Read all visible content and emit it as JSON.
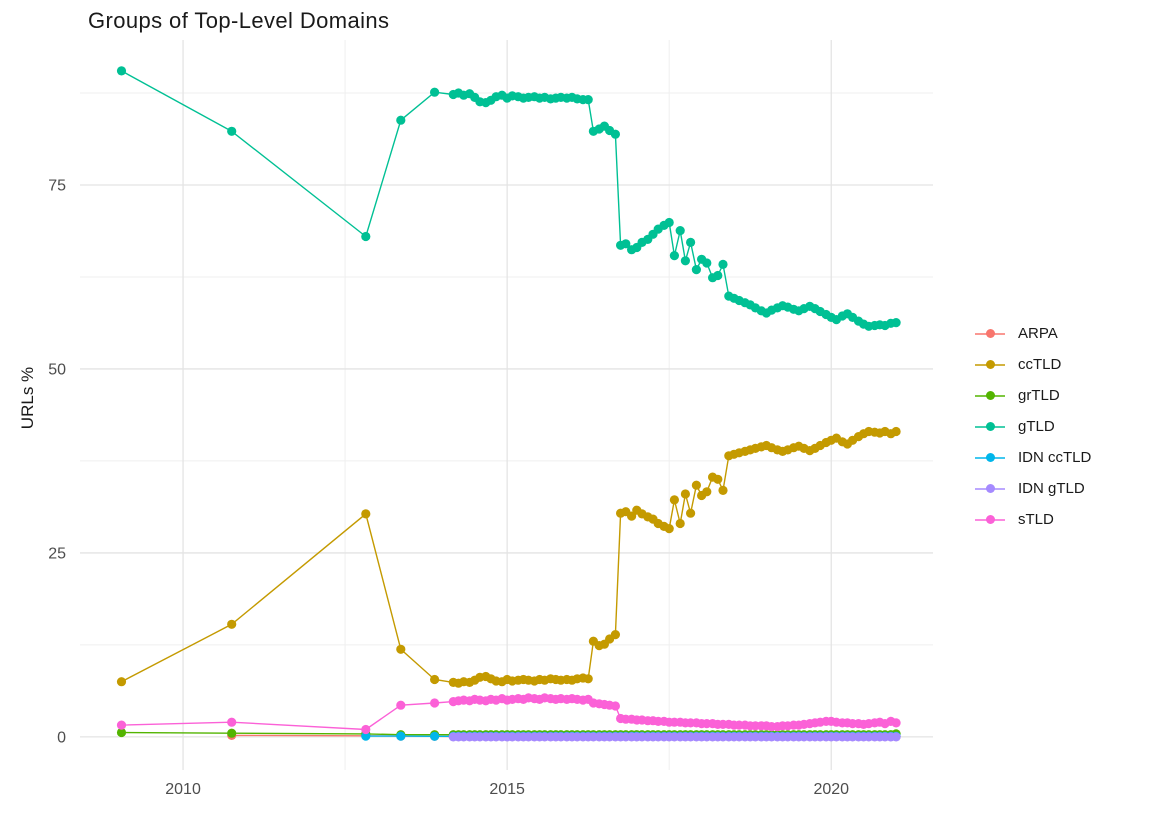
{
  "chart_data": {
    "type": "line",
    "title": "Groups of Top-Level Domains",
    "xlabel": "",
    "ylabel": "URLs %",
    "grid": true,
    "legend_position": "right",
    "xlim": [
      2008.41,
      2021.57
    ],
    "ylim": [
      -4.5,
      94.7
    ],
    "x_ticks": [
      {
        "v": 2010,
        "label": "2010"
      },
      {
        "v": 2015,
        "label": "2015"
      },
      {
        "v": 2020,
        "label": "2020"
      }
    ],
    "y_ticks": [
      {
        "v": 0,
        "label": "0"
      },
      {
        "v": 25,
        "label": "25"
      },
      {
        "v": 50,
        "label": "50"
      },
      {
        "v": 75,
        "label": "75"
      }
    ],
    "x_minor": [
      2012.5,
      2017.5
    ],
    "y_minor": [
      12.5,
      37.5,
      62.5,
      87.5
    ],
    "x": [
      2009.05,
      2010.75,
      2012.82,
      2013.36,
      2013.88,
      2014.17,
      2014.25,
      2014.33,
      2014.42,
      2014.5,
      2014.58,
      2014.67,
      2014.75,
      2014.83,
      2014.92,
      2015.0,
      2015.08,
      2015.17,
      2015.25,
      2015.33,
      2015.42,
      2015.5,
      2015.58,
      2015.67,
      2015.75,
      2015.83,
      2015.92,
      2016.0,
      2016.08,
      2016.17,
      2016.25,
      2016.33,
      2016.42,
      2016.5,
      2016.58,
      2016.67,
      2016.75,
      2016.83,
      2016.92,
      2017.0,
      2017.08,
      2017.17,
      2017.25,
      2017.33,
      2017.42,
      2017.5,
      2017.58,
      2017.67,
      2017.75,
      2017.83,
      2017.92,
      2018.0,
      2018.08,
      2018.17,
      2018.25,
      2018.33,
      2018.42,
      2018.5,
      2018.58,
      2018.67,
      2018.75,
      2018.83,
      2018.92,
      2019.0,
      2019.08,
      2019.17,
      2019.25,
      2019.33,
      2019.42,
      2019.5,
      2019.58,
      2019.67,
      2019.75,
      2019.83,
      2019.92,
      2020.0,
      2020.08,
      2020.17,
      2020.25,
      2020.33,
      2020.42,
      2020.5,
      2020.58,
      2020.67,
      2020.75,
      2020.83,
      2020.92,
      2021.0
    ],
    "series": [
      {
        "name": "ARPA",
        "color": "#F8766D",
        "values": [
          null,
          0.2,
          0.15,
          0.1,
          0.08,
          0.05,
          0.05,
          0.05,
          0.05,
          0.05,
          0.05,
          0.05,
          0.05,
          0.05,
          0.05,
          0.05,
          0.05,
          0.05,
          0.05,
          0.05,
          0.05,
          0.05,
          0.05,
          0.05,
          0.05,
          0.05,
          0.05,
          0.05,
          0.05,
          0.05,
          0.05,
          0.05,
          0.05,
          0.05,
          0.05,
          0.05,
          0.05,
          0.05,
          0.05,
          0.05,
          0.05,
          0.05,
          0.05,
          0.05,
          0.05,
          0.05,
          0.05,
          0.05,
          0.05,
          0.05,
          0.05,
          0.05,
          0.05,
          0.05,
          0.05,
          0.05,
          0.05,
          0.05,
          0.05,
          0.05,
          0.05,
          0.05,
          0.05,
          0.05,
          0.05,
          0.05,
          0.05,
          0.05,
          0.05,
          0.05,
          0.05,
          0.05,
          0.05,
          0.05,
          0.05,
          0.05,
          0.05,
          0.05,
          0.05,
          0.05,
          0.05,
          0.05,
          0.05,
          0.05,
          0.05,
          0.05,
          0.05,
          0.05
        ]
      },
      {
        "name": "ccTLD",
        "color": "#C49A00",
        "values": [
          7.5,
          15.3,
          30.3,
          11.9,
          7.8,
          7.4,
          7.3,
          7.5,
          7.4,
          7.7,
          8.1,
          8.2,
          7.9,
          7.6,
          7.5,
          7.8,
          7.6,
          7.7,
          7.8,
          7.7,
          7.6,
          7.8,
          7.7,
          7.9,
          7.8,
          7.7,
          7.8,
          7.7,
          7.9,
          8.0,
          7.9,
          13.0,
          12.4,
          12.6,
          13.3,
          13.9,
          30.4,
          30.6,
          30.0,
          30.8,
          30.3,
          29.9,
          29.6,
          29.0,
          28.6,
          28.3,
          32.2,
          29.0,
          33.0,
          30.4,
          34.2,
          32.8,
          33.3,
          35.3,
          35.0,
          33.5,
          38.2,
          38.4,
          38.6,
          38.8,
          39.0,
          39.2,
          39.4,
          39.6,
          39.3,
          39.0,
          38.8,
          39.0,
          39.3,
          39.5,
          39.2,
          38.9,
          39.2,
          39.6,
          40.0,
          40.3,
          40.6,
          40.1,
          39.8,
          40.3,
          40.8,
          41.2,
          41.5,
          41.4,
          41.3,
          41.5,
          41.2,
          41.5
        ]
      },
      {
        "name": "grTLD",
        "color": "#53B400",
        "values": [
          0.6,
          0.5,
          0.4,
          0.3,
          0.3,
          0.3,
          0.3,
          0.3,
          0.3,
          0.3,
          0.3,
          0.3,
          0.3,
          0.3,
          0.3,
          0.3,
          0.3,
          0.3,
          0.3,
          0.3,
          0.3,
          0.3,
          0.3,
          0.3,
          0.3,
          0.3,
          0.3,
          0.3,
          0.3,
          0.3,
          0.3,
          0.3,
          0.3,
          0.3,
          0.3,
          0.3,
          0.3,
          0.3,
          0.3,
          0.3,
          0.3,
          0.3,
          0.3,
          0.3,
          0.3,
          0.3,
          0.3,
          0.3,
          0.3,
          0.3,
          0.3,
          0.3,
          0.3,
          0.3,
          0.3,
          0.3,
          0.3,
          0.3,
          0.3,
          0.3,
          0.3,
          0.3,
          0.3,
          0.3,
          0.3,
          0.3,
          0.3,
          0.3,
          0.3,
          0.3,
          0.3,
          0.3,
          0.3,
          0.3,
          0.3,
          0.3,
          0.3,
          0.3,
          0.3,
          0.3,
          0.3,
          0.3,
          0.3,
          0.3,
          0.3,
          0.3,
          0.3,
          0.4
        ]
      },
      {
        "name": "gTLD",
        "color": "#00C094",
        "values": [
          90.5,
          82.3,
          68.0,
          83.8,
          87.6,
          87.3,
          87.5,
          87.2,
          87.4,
          86.9,
          86.3,
          86.2,
          86.5,
          87.0,
          87.2,
          86.8,
          87.1,
          87.0,
          86.8,
          86.9,
          87.0,
          86.8,
          86.9,
          86.7,
          86.8,
          86.9,
          86.8,
          86.9,
          86.7,
          86.6,
          86.6,
          82.3,
          82.6,
          83.0,
          82.4,
          81.9,
          66.8,
          67.0,
          66.2,
          66.5,
          67.2,
          67.6,
          68.3,
          69.0,
          69.5,
          69.9,
          65.4,
          68.8,
          64.7,
          67.2,
          63.5,
          64.9,
          64.4,
          62.4,
          62.7,
          64.2,
          59.9,
          59.6,
          59.3,
          59.0,
          58.7,
          58.3,
          57.9,
          57.6,
          58.0,
          58.3,
          58.6,
          58.4,
          58.1,
          57.9,
          58.2,
          58.5,
          58.2,
          57.8,
          57.4,
          57.0,
          56.7,
          57.2,
          57.5,
          57.0,
          56.5,
          56.1,
          55.8,
          55.9,
          56.0,
          55.9,
          56.2,
          56.3
        ]
      },
      {
        "name": "IDN ccTLD",
        "color": "#00B6EB",
        "values": [
          null,
          null,
          0.1,
          0.1,
          0.08,
          0.08,
          0.08,
          0.08,
          0.08,
          0.08,
          0.08,
          0.08,
          0.08,
          0.08,
          0.08,
          0.08,
          0.08,
          0.08,
          0.08,
          0.08,
          0.08,
          0.08,
          0.08,
          0.08,
          0.08,
          0.08,
          0.08,
          0.08,
          0.08,
          0.08,
          0.08,
          0.08,
          0.08,
          0.08,
          0.08,
          0.08,
          0.08,
          0.08,
          0.08,
          0.08,
          0.08,
          0.08,
          0.08,
          0.08,
          0.08,
          0.08,
          0.08,
          0.08,
          0.08,
          0.08,
          0.08,
          0.08,
          0.08,
          0.08,
          0.08,
          0.08,
          0.08,
          0.08,
          0.08,
          0.08,
          0.08,
          0.08,
          0.08,
          0.08,
          0.08,
          0.08,
          0.08,
          0.08,
          0.08,
          0.08,
          0.08,
          0.08,
          0.08,
          0.08,
          0.08,
          0.08,
          0.08,
          0.08,
          0.08,
          0.08,
          0.08,
          0.08,
          0.08,
          0.08,
          0.08,
          0.08,
          0.08,
          0.08
        ]
      },
      {
        "name": "IDN gTLD",
        "color": "#A58AFF",
        "values": [
          null,
          null,
          null,
          null,
          null,
          0.0,
          0.0,
          0.0,
          0.0,
          0.0,
          0.0,
          0.0,
          0.0,
          0.0,
          0.0,
          0.0,
          0.0,
          0.0,
          0.0,
          0.0,
          0.0,
          0.0,
          0.0,
          0.0,
          0.0,
          0.0,
          0.0,
          0.0,
          0.0,
          0.0,
          0.0,
          0.0,
          0.0,
          0.0,
          0.0,
          0.0,
          0.0,
          0.0,
          0.0,
          0.0,
          0.0,
          0.0,
          0.0,
          0.0,
          0.0,
          0.0,
          0.0,
          0.0,
          0.0,
          0.0,
          0.0,
          0.0,
          0.0,
          0.0,
          0.0,
          0.0,
          0.0,
          0.0,
          0.0,
          0.0,
          0.0,
          0.0,
          0.0,
          0.0,
          0.0,
          0.0,
          0.0,
          0.0,
          0.0,
          0.0,
          0.0,
          0.0,
          0.0,
          0.0,
          0.0,
          0.0,
          0.0,
          0.0,
          0.0,
          0.0,
          0.0,
          0.0,
          0.0,
          0.0,
          0.0,
          0.0,
          0.0,
          0.0
        ]
      },
      {
        "name": "sTLD",
        "color": "#FB61D7",
        "values": [
          1.6,
          2.0,
          1.0,
          4.3,
          4.6,
          4.8,
          4.9,
          5.0,
          4.9,
          5.1,
          5.0,
          4.9,
          5.1,
          5.0,
          5.2,
          5.0,
          5.1,
          5.2,
          5.1,
          5.3,
          5.2,
          5.1,
          5.3,
          5.2,
          5.1,
          5.2,
          5.1,
          5.2,
          5.1,
          5.0,
          5.1,
          4.6,
          4.5,
          4.4,
          4.3,
          4.2,
          2.5,
          2.4,
          2.4,
          2.3,
          2.3,
          2.2,
          2.2,
          2.1,
          2.1,
          2.0,
          2.0,
          2.0,
          1.9,
          1.9,
          1.9,
          1.8,
          1.8,
          1.8,
          1.7,
          1.7,
          1.7,
          1.6,
          1.6,
          1.6,
          1.5,
          1.5,
          1.5,
          1.5,
          1.4,
          1.4,
          1.5,
          1.5,
          1.6,
          1.6,
          1.7,
          1.8,
          1.9,
          2.0,
          2.1,
          2.1,
          2.0,
          1.9,
          1.9,
          1.8,
          1.8,
          1.7,
          1.8,
          1.9,
          2.0,
          1.8,
          2.1,
          1.9
        ]
      }
    ],
    "legend": {
      "position": "right",
      "items": [
        "ARPA",
        "ccTLD",
        "grTLD",
        "gTLD",
        "IDN ccTLD",
        "IDN gTLD",
        "sTLD"
      ]
    }
  },
  "style": {
    "grid_major_color": "#e4e4e4",
    "grid_minor_color": "#efefef",
    "tick_label_color": "#4d4d4d",
    "text_color": "#1a1a1a",
    "background": "#ffffff"
  }
}
